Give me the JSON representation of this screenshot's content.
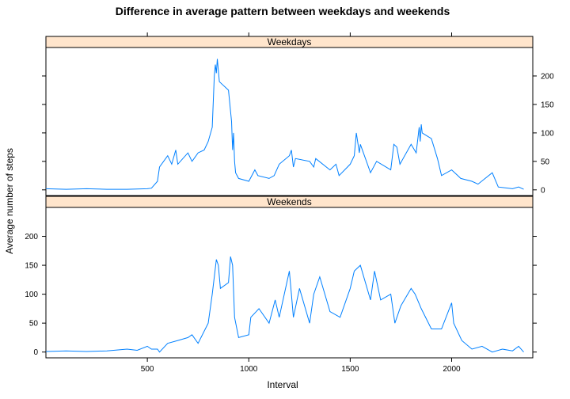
{
  "chart_data": {
    "type": "line",
    "title": "Difference in average pattern between weekdays and weekends",
    "xlabel": "Interval",
    "ylabel": "Average number of steps",
    "xlim": [
      0,
      2400
    ],
    "ylim": [
      -10,
      250
    ],
    "x_ticks": [
      500,
      1000,
      1500,
      2000
    ],
    "y_ticks": [
      0,
      50,
      100,
      150,
      200
    ],
    "line_color": "#0080ff",
    "strip_color": "#ffe5cc",
    "grid": false,
    "panels": [
      {
        "strip_label": "Weekdays",
        "y_tick_side": "right",
        "series": [
          {
            "x": [
              0,
              100,
              200,
              300,
              400,
              500,
              520,
              550,
              560,
              600,
              620,
              640,
              650,
              700,
              720,
              730,
              750,
              780,
              800,
              820,
              830,
              835,
              840,
              845,
              850,
              855,
              900,
              915,
              920,
              925,
              930,
              935,
              950,
              1000,
              1030,
              1045,
              1100,
              1125,
              1150,
              1200,
              1210,
              1220,
              1230,
              1300,
              1320,
              1330,
              1400,
              1430,
              1445,
              1500,
              1520,
              1530,
              1545,
              1550,
              1600,
              1630,
              1700,
              1715,
              1730,
              1745,
              1800,
              1825,
              1840,
              1845,
              1850,
              1855,
              1900,
              1930,
              1950,
              2000,
              2030,
              2045,
              2100,
              2130,
              2200,
              2230,
              2300,
              2330,
              2355
            ],
            "values": [
              2,
              1,
              2,
              1,
              1,
              2,
              3,
              15,
              40,
              60,
              45,
              70,
              45,
              65,
              50,
              55,
              65,
              70,
              85,
              110,
              200,
              220,
              205,
              230,
              210,
              190,
              175,
              120,
              70,
              100,
              50,
              30,
              20,
              15,
              35,
              25,
              20,
              25,
              45,
              60,
              70,
              40,
              55,
              50,
              40,
              55,
              35,
              45,
              25,
              45,
              60,
              100,
              65,
              80,
              30,
              50,
              35,
              80,
              75,
              45,
              80,
              65,
              110,
              85,
              115,
              100,
              90,
              55,
              25,
              35,
              25,
              20,
              15,
              10,
              30,
              5,
              2,
              5,
              1
            ]
          }
        ]
      },
      {
        "strip_label": "Weekends",
        "y_tick_side": "left",
        "series": [
          {
            "x": [
              0,
              100,
              200,
              300,
              400,
              450,
              500,
              520,
              550,
              560,
              600,
              650,
              700,
              720,
              750,
              800,
              820,
              830,
              840,
              850,
              860,
              900,
              910,
              920,
              930,
              950,
              1000,
              1010,
              1050,
              1100,
              1130,
              1150,
              1200,
              1210,
              1220,
              1250,
              1300,
              1320,
              1350,
              1400,
              1450,
              1500,
              1520,
              1550,
              1600,
              1620,
              1650,
              1700,
              1720,
              1750,
              1800,
              1820,
              1850,
              1900,
              1950,
              2000,
              2010,
              2050,
              2100,
              2150,
              2200,
              2250,
              2300,
              2330,
              2355
            ],
            "values": [
              1,
              2,
              1,
              2,
              5,
              3,
              10,
              5,
              5,
              0,
              15,
              20,
              25,
              30,
              15,
              50,
              100,
              130,
              160,
              150,
              110,
              120,
              165,
              150,
              60,
              25,
              30,
              60,
              75,
              50,
              90,
              60,
              140,
              100,
              60,
              110,
              50,
              100,
              130,
              70,
              60,
              110,
              140,
              150,
              90,
              140,
              90,
              100,
              50,
              80,
              110,
              100,
              75,
              40,
              40,
              85,
              50,
              20,
              5,
              10,
              0,
              5,
              2,
              10,
              0
            ]
          }
        ]
      }
    ]
  }
}
